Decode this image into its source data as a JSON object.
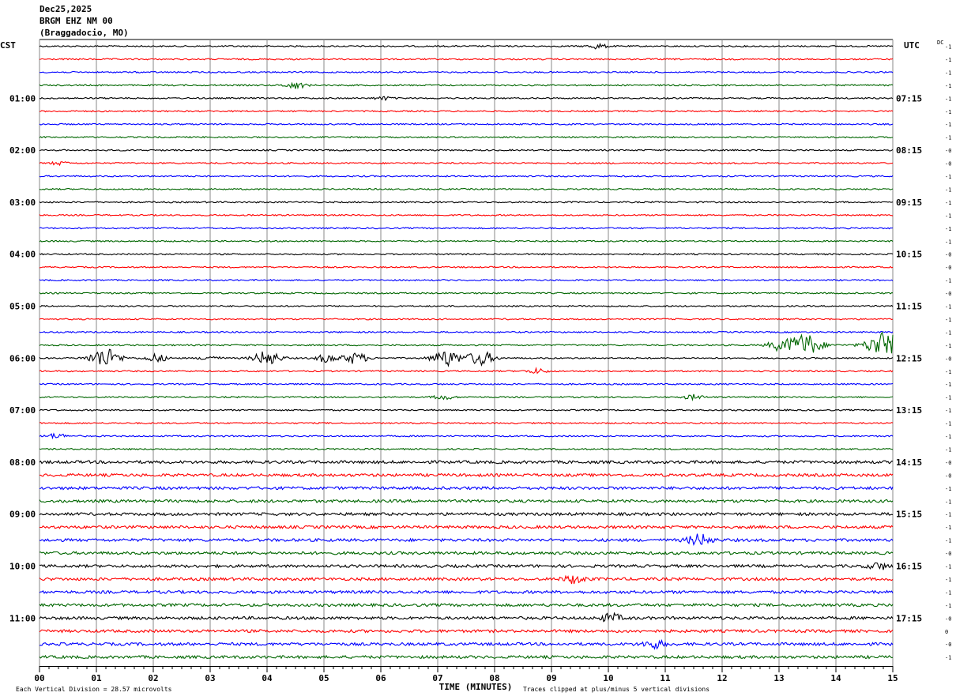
{
  "header": {
    "date": "Dec25,2025",
    "station": "BRGM EHZ NM 00",
    "location": "(Braggadocio, MO)"
  },
  "chart_data": {
    "type": "line",
    "title": "BRGM EHZ NM 00",
    "left_timezone": "CST",
    "right_timezone": "UTC",
    "dc_label": "DC",
    "xlabel": "TIME (MINUTES)",
    "xlim": [
      0,
      15
    ],
    "x_ticks": [
      "00",
      "01",
      "02",
      "03",
      "04",
      "05",
      "06",
      "07",
      "08",
      "09",
      "10",
      "11",
      "12",
      "13",
      "14",
      "15"
    ],
    "left_hour_labels": [
      "01:00",
      "02:00",
      "03:00",
      "04:00",
      "05:00",
      "06:00",
      "07:00",
      "08:00",
      "09:00",
      "10:00",
      "11:00"
    ],
    "right_hour_labels": [
      "07:15",
      "08:15",
      "09:15",
      "10:15",
      "11:15",
      "12:15",
      "13:15",
      "14:15",
      "15:15",
      "16:15",
      "17:15"
    ],
    "hour_label_rows": [
      4,
      8,
      12,
      16,
      20,
      24,
      28,
      32,
      36,
      40,
      44
    ],
    "trace_colors": [
      "#000000",
      "#ff0000",
      "#0000ff",
      "#006600"
    ],
    "dc_offsets": [
      "-1",
      "-1",
      "-1",
      "-1",
      "-1",
      "-1",
      "-1",
      "-1",
      "-0",
      "-0",
      "-1",
      "-1",
      "-1",
      "-1",
      "-1",
      "-1",
      "-0",
      "-0",
      "-1",
      "-0",
      "-1",
      "-1",
      "-1",
      "-1",
      "-0",
      "-1",
      "-1",
      "-1",
      "-1",
      "-1",
      "-1",
      "-1",
      "-0",
      "-0",
      "-1",
      "-1",
      "-1",
      "-1",
      "-1",
      "-0",
      "-1",
      "-1",
      "-1",
      "-1",
      "-0",
      "0",
      "-0",
      "-1"
    ],
    "noise_levels": [
      1,
      1,
      1,
      1,
      1,
      1,
      1,
      1,
      1,
      1,
      1,
      1,
      1,
      1,
      1,
      1,
      1,
      1,
      1,
      1,
      1,
      1,
      1,
      1,
      1,
      1,
      1,
      1,
      1,
      1,
      1,
      1,
      2,
      2,
      2,
      2,
      2,
      2,
      2,
      2,
      2,
      2,
      2,
      2,
      2,
      2,
      2,
      2
    ],
    "events": [
      {
        "row": 0,
        "minute": 9.8,
        "amplitude": 3
      },
      {
        "row": 3,
        "minute": 4.5,
        "amplitude": 4
      },
      {
        "row": 4,
        "minute": 6.05,
        "amplitude": 2
      },
      {
        "row": 9,
        "minute": 0.35,
        "amplitude": 2
      },
      {
        "row": 23,
        "minute": 13.0,
        "amplitude": 6
      },
      {
        "row": 23,
        "minute": 13.45,
        "amplitude": 14
      },
      {
        "row": 23,
        "minute": 14.85,
        "amplitude": 16
      },
      {
        "row": 24,
        "minute": 1.15,
        "amplitude": 12
      },
      {
        "row": 24,
        "minute": 2.05,
        "amplitude": 5
      },
      {
        "row": 24,
        "minute": 3.0,
        "amplitude": 3
      },
      {
        "row": 24,
        "minute": 4.0,
        "amplitude": 9
      },
      {
        "row": 24,
        "minute": 5.05,
        "amplitude": 5
      },
      {
        "row": 24,
        "minute": 5.55,
        "amplitude": 7
      },
      {
        "row": 24,
        "minute": 7.15,
        "amplitude": 10
      },
      {
        "row": 24,
        "minute": 7.75,
        "amplitude": 9
      },
      {
        "row": 25,
        "minute": 8.75,
        "amplitude": 3
      },
      {
        "row": 27,
        "minute": 7.1,
        "amplitude": 3
      },
      {
        "row": 27,
        "minute": 11.5,
        "amplitude": 3
      },
      {
        "row": 30,
        "minute": 0.3,
        "amplitude": 3
      },
      {
        "row": 38,
        "minute": 11.6,
        "amplitude": 7
      },
      {
        "row": 40,
        "minute": 14.75,
        "amplitude": 4
      },
      {
        "row": 41,
        "minute": 9.4,
        "amplitude": 5
      },
      {
        "row": 44,
        "minute": 10.05,
        "amplitude": 5
      },
      {
        "row": 46,
        "minute": 10.8,
        "amplitude": 5
      }
    ],
    "footer_left": "Each Vertical Division =   28.57 microvolts",
    "footer_right": "Traces clipped at plus/minus 5 vertical divisions"
  }
}
